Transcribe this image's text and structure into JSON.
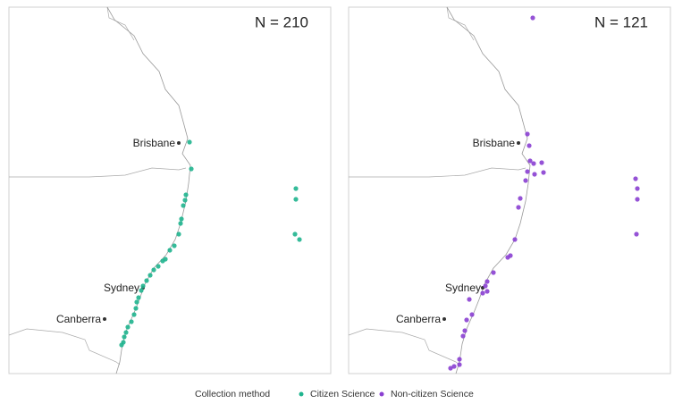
{
  "panels": [
    {
      "title": "N = 210",
      "cities": [
        "Brisbane",
        "Sydney",
        "Canberra"
      ]
    },
    {
      "title": "N = 121",
      "cities": [
        "Brisbane",
        "Sydney",
        "Canberra"
      ]
    }
  ],
  "legend": {
    "title": "Collection method",
    "items": [
      "Citizen Science",
      "Non-citizen Science"
    ]
  }
}
